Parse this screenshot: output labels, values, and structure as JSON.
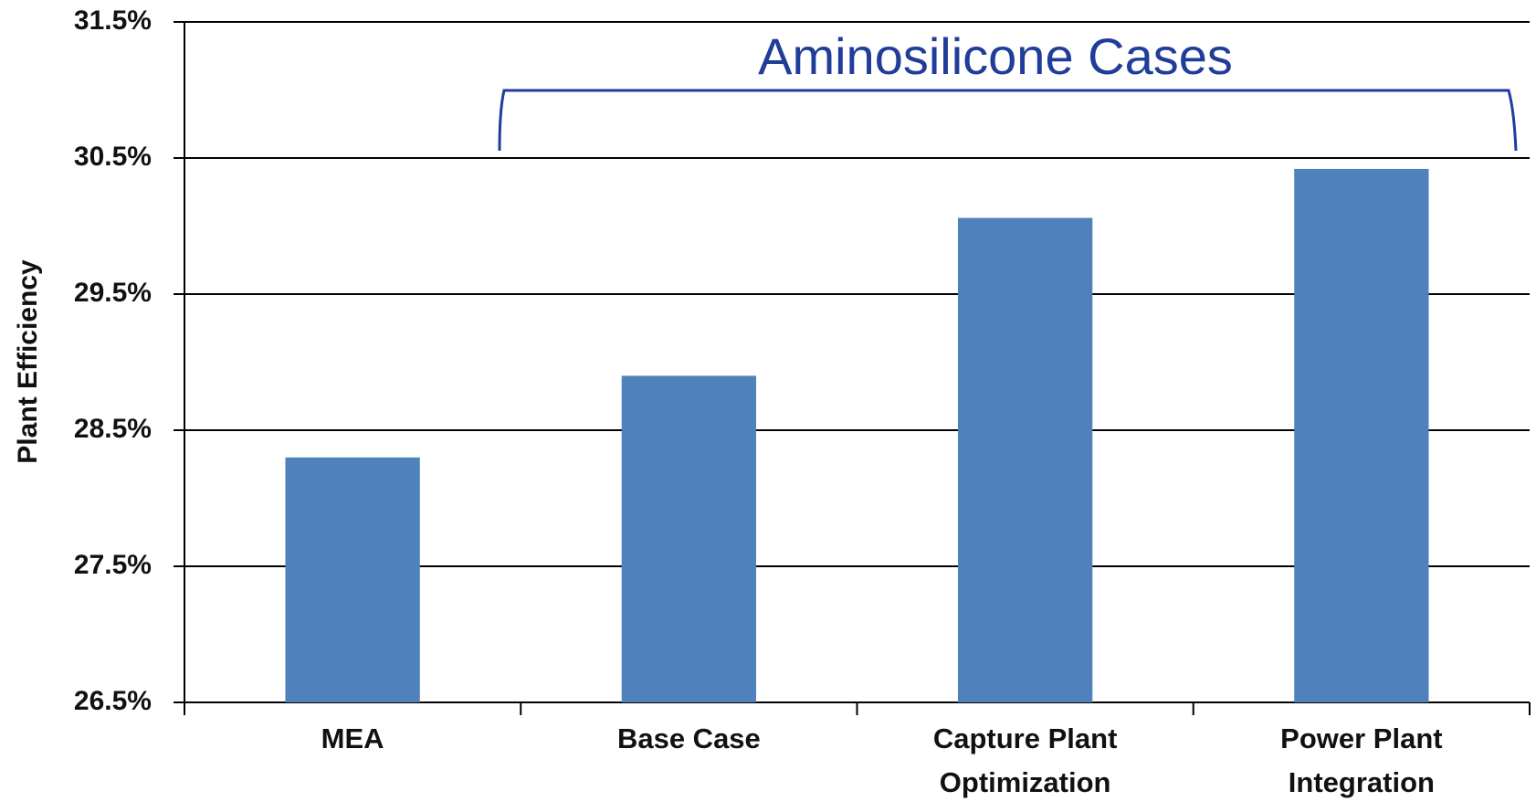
{
  "chart_data": {
    "type": "bar",
    "y_label": "Plant Efficiency",
    "annotation": "Aminosilicone Cases",
    "categories": [
      "MEA",
      "Base Case",
      "Capture Plant Optimization",
      "Power Plant Integration"
    ],
    "values": [
      28.3,
      28.9,
      30.06,
      30.42
    ],
    "color": "#4f81bd",
    "ylim": [
      26.5,
      31.5
    ],
    "yticks": [
      {
        "value": 26.5,
        "label": "26.5%"
      },
      {
        "value": 27.5,
        "label": "27.5%"
      },
      {
        "value": 28.5,
        "label": "28.5%"
      },
      {
        "value": 29.5,
        "label": "29.5%"
      },
      {
        "value": 30.5,
        "label": "30.5%"
      },
      {
        "value": 31.5,
        "label": "31.5%"
      }
    ],
    "grid": true
  }
}
